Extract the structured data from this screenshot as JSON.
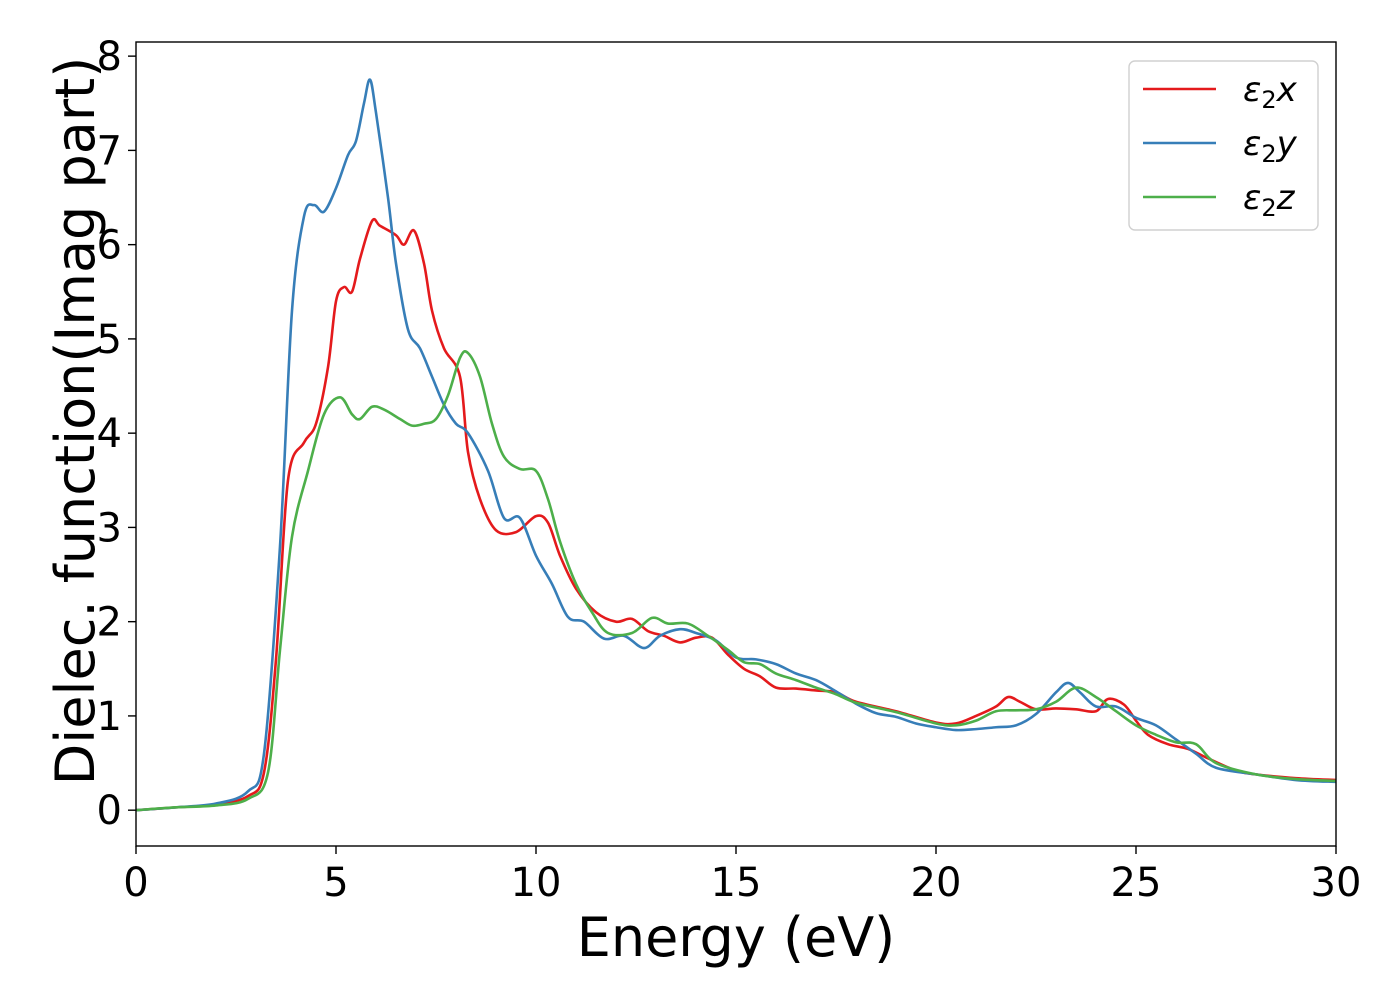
{
  "chart_data": {
    "type": "line",
    "title": "",
    "xlabel": "Energy (eV)",
    "ylabel": "Dielec. function(Imag part)",
    "xlim": [
      0,
      30
    ],
    "ylim": [
      -0.38,
      8.15
    ],
    "xticks": [
      "0",
      "5",
      "10",
      "15",
      "20",
      "25",
      "30"
    ],
    "yticks": [
      "0",
      "1",
      "2",
      "3",
      "4",
      "5",
      "6",
      "7",
      "8"
    ],
    "grid": false,
    "legend": "top-right",
    "series": [
      {
        "name": "ε₂x",
        "legend_sym": "ε",
        "legend_sub": "2",
        "legend_var": "x",
        "color": "#e41a1c",
        "points": [
          [
            0,
            0
          ],
          [
            1,
            0.03
          ],
          [
            2,
            0.06
          ],
          [
            2.8,
            0.15
          ],
          [
            3.2,
            0.4
          ],
          [
            3.5,
            1.6
          ],
          [
            3.8,
            3.5
          ],
          [
            4.2,
            3.9
          ],
          [
            4.5,
            4.1
          ],
          [
            4.8,
            4.7
          ],
          [
            5.0,
            5.4
          ],
          [
            5.2,
            5.55
          ],
          [
            5.4,
            5.5
          ],
          [
            5.6,
            5.85
          ],
          [
            5.9,
            6.25
          ],
          [
            6.1,
            6.2
          ],
          [
            6.5,
            6.1
          ],
          [
            6.7,
            6.0
          ],
          [
            6.95,
            6.15
          ],
          [
            7.2,
            5.8
          ],
          [
            7.4,
            5.3
          ],
          [
            7.7,
            4.9
          ],
          [
            8.1,
            4.6
          ],
          [
            8.3,
            3.8
          ],
          [
            8.6,
            3.3
          ],
          [
            9.0,
            2.97
          ],
          [
            9.5,
            2.95
          ],
          [
            10.0,
            3.12
          ],
          [
            10.3,
            3.05
          ],
          [
            10.6,
            2.7
          ],
          [
            11.0,
            2.35
          ],
          [
            11.5,
            2.1
          ],
          [
            12.0,
            2.0
          ],
          [
            12.4,
            2.03
          ],
          [
            12.8,
            1.9
          ],
          [
            13.2,
            1.85
          ],
          [
            13.6,
            1.78
          ],
          [
            14.0,
            1.83
          ],
          [
            14.4,
            1.83
          ],
          [
            14.8,
            1.65
          ],
          [
            15.2,
            1.5
          ],
          [
            15.6,
            1.42
          ],
          [
            16.0,
            1.3
          ],
          [
            16.5,
            1.29
          ],
          [
            17.0,
            1.27
          ],
          [
            17.5,
            1.25
          ],
          [
            18.0,
            1.15
          ],
          [
            19.0,
            1.05
          ],
          [
            20.0,
            0.93
          ],
          [
            20.5,
            0.92
          ],
          [
            21.0,
            1.0
          ],
          [
            21.5,
            1.1
          ],
          [
            21.8,
            1.2
          ],
          [
            22.1,
            1.15
          ],
          [
            22.5,
            1.07
          ],
          [
            23.0,
            1.08
          ],
          [
            23.5,
            1.07
          ],
          [
            24.0,
            1.05
          ],
          [
            24.3,
            1.18
          ],
          [
            24.7,
            1.12
          ],
          [
            25.0,
            0.95
          ],
          [
            25.3,
            0.8
          ],
          [
            25.8,
            0.7
          ],
          [
            26.3,
            0.65
          ],
          [
            26.8,
            0.55
          ],
          [
            27.5,
            0.42
          ],
          [
            28,
            0.38
          ],
          [
            29,
            0.34
          ],
          [
            30,
            0.32
          ]
        ]
      },
      {
        "name": "ε₂y",
        "legend_sym": "ε",
        "legend_sub": "2",
        "legend_var": "y",
        "color": "#377eb8",
        "points": [
          [
            0,
            0
          ],
          [
            1,
            0.03
          ],
          [
            2,
            0.07
          ],
          [
            2.8,
            0.2
          ],
          [
            3.2,
            0.6
          ],
          [
            3.6,
            2.8
          ],
          [
            3.9,
            5.3
          ],
          [
            4.2,
            6.3
          ],
          [
            4.45,
            6.42
          ],
          [
            4.7,
            6.35
          ],
          [
            5.0,
            6.6
          ],
          [
            5.3,
            6.95
          ],
          [
            5.5,
            7.1
          ],
          [
            5.7,
            7.5
          ],
          [
            5.85,
            7.75
          ],
          [
            6.0,
            7.4
          ],
          [
            6.3,
            6.5
          ],
          [
            6.5,
            5.8
          ],
          [
            6.8,
            5.1
          ],
          [
            7.1,
            4.9
          ],
          [
            7.4,
            4.6
          ],
          [
            7.7,
            4.3
          ],
          [
            8.0,
            4.1
          ],
          [
            8.3,
            4.0
          ],
          [
            8.8,
            3.6
          ],
          [
            9.2,
            3.1
          ],
          [
            9.6,
            3.1
          ],
          [
            10.0,
            2.7
          ],
          [
            10.4,
            2.4
          ],
          [
            10.8,
            2.05
          ],
          [
            11.2,
            2.0
          ],
          [
            11.7,
            1.82
          ],
          [
            12.2,
            1.85
          ],
          [
            12.7,
            1.72
          ],
          [
            13.1,
            1.85
          ],
          [
            13.6,
            1.92
          ],
          [
            14.0,
            1.88
          ],
          [
            14.5,
            1.8
          ],
          [
            15.0,
            1.62
          ],
          [
            15.5,
            1.6
          ],
          [
            16.0,
            1.55
          ],
          [
            16.5,
            1.45
          ],
          [
            17.0,
            1.38
          ],
          [
            17.5,
            1.26
          ],
          [
            18.0,
            1.13
          ],
          [
            18.5,
            1.03
          ],
          [
            19.0,
            0.99
          ],
          [
            19.5,
            0.92
          ],
          [
            20.0,
            0.88
          ],
          [
            20.5,
            0.85
          ],
          [
            21.0,
            0.86
          ],
          [
            21.5,
            0.88
          ],
          [
            22.0,
            0.9
          ],
          [
            22.5,
            1.02
          ],
          [
            23.0,
            1.25
          ],
          [
            23.3,
            1.35
          ],
          [
            23.6,
            1.25
          ],
          [
            24.0,
            1.1
          ],
          [
            24.5,
            1.1
          ],
          [
            25.0,
            0.98
          ],
          [
            25.5,
            0.9
          ],
          [
            26.0,
            0.75
          ],
          [
            26.5,
            0.6
          ],
          [
            27.0,
            0.45
          ],
          [
            28,
            0.38
          ],
          [
            29,
            0.32
          ],
          [
            30,
            0.3
          ]
        ]
      },
      {
        "name": "ε₂z",
        "legend_sym": "ε",
        "legend_sub": "2",
        "legend_var": "z",
        "color": "#4daf4a",
        "points": [
          [
            0,
            0
          ],
          [
            1,
            0.03
          ],
          [
            2,
            0.05
          ],
          [
            2.8,
            0.12
          ],
          [
            3.3,
            0.4
          ],
          [
            3.6,
            1.7
          ],
          [
            3.9,
            2.9
          ],
          [
            4.3,
            3.6
          ],
          [
            4.7,
            4.2
          ],
          [
            5.1,
            4.38
          ],
          [
            5.4,
            4.2
          ],
          [
            5.6,
            4.15
          ],
          [
            5.9,
            4.28
          ],
          [
            6.2,
            4.25
          ],
          [
            6.6,
            4.15
          ],
          [
            6.9,
            4.08
          ],
          [
            7.2,
            4.1
          ],
          [
            7.5,
            4.15
          ],
          [
            7.8,
            4.4
          ],
          [
            8.1,
            4.8
          ],
          [
            8.3,
            4.85
          ],
          [
            8.6,
            4.6
          ],
          [
            8.9,
            4.1
          ],
          [
            9.2,
            3.75
          ],
          [
            9.6,
            3.62
          ],
          [
            10.0,
            3.6
          ],
          [
            10.3,
            3.3
          ],
          [
            10.6,
            2.85
          ],
          [
            11.0,
            2.4
          ],
          [
            11.4,
            2.1
          ],
          [
            11.8,
            1.88
          ],
          [
            12.4,
            1.88
          ],
          [
            12.9,
            2.04
          ],
          [
            13.3,
            1.98
          ],
          [
            13.8,
            1.98
          ],
          [
            14.3,
            1.85
          ],
          [
            14.8,
            1.7
          ],
          [
            15.2,
            1.57
          ],
          [
            15.6,
            1.55
          ],
          [
            16.0,
            1.45
          ],
          [
            16.5,
            1.38
          ],
          [
            17.0,
            1.3
          ],
          [
            17.5,
            1.23
          ],
          [
            18.0,
            1.14
          ],
          [
            19.0,
            1.04
          ],
          [
            20.0,
            0.92
          ],
          [
            20.5,
            0.9
          ],
          [
            21.0,
            0.95
          ],
          [
            21.5,
            1.05
          ],
          [
            22.0,
            1.06
          ],
          [
            22.5,
            1.07
          ],
          [
            23.0,
            1.15
          ],
          [
            23.5,
            1.3
          ],
          [
            24.0,
            1.2
          ],
          [
            24.5,
            1.05
          ],
          [
            25.0,
            0.9
          ],
          [
            25.5,
            0.8
          ],
          [
            26.0,
            0.72
          ],
          [
            26.5,
            0.7
          ],
          [
            27.0,
            0.5
          ],
          [
            28,
            0.38
          ],
          [
            29,
            0.33
          ],
          [
            30,
            0.31
          ]
        ]
      }
    ]
  }
}
